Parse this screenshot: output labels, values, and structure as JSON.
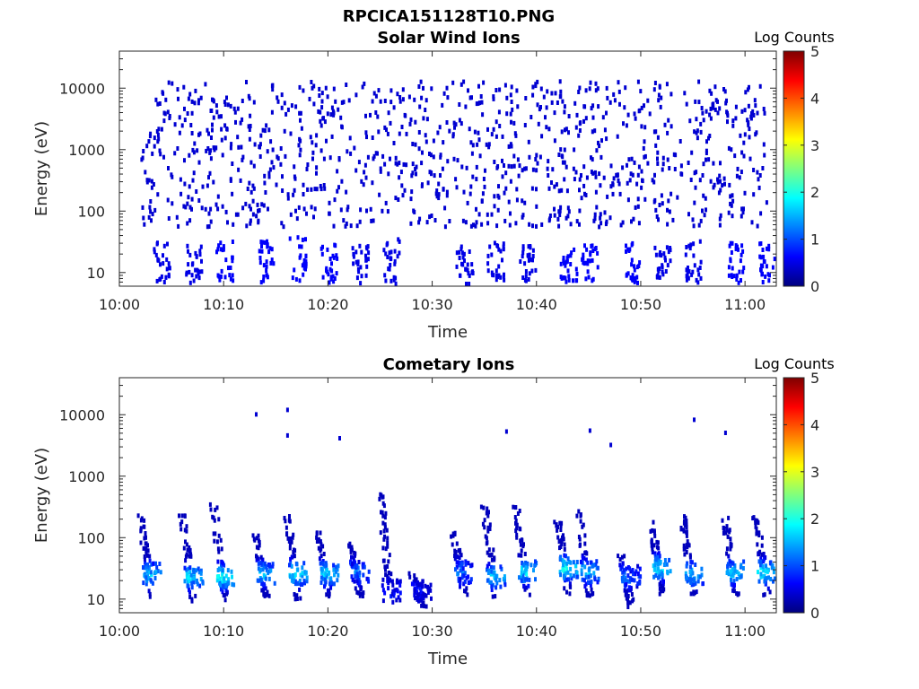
{
  "figure_title": "RPCICA151128T10.PNG",
  "colorbar_stops": [
    "#00007f",
    "#0000ff",
    "#007fff",
    "#00ffff",
    "#7fff7f",
    "#ffff00",
    "#ff7f00",
    "#ff0000",
    "#7f0000"
  ],
  "chart_data": [
    {
      "type": "heatmap",
      "title": "Solar Wind Ions",
      "xlabel": "Time",
      "ylabel": "Energy (eV)",
      "yscale": "log",
      "xlim": [
        "10:00",
        "11:03"
      ],
      "ylim": [
        6,
        40000
      ],
      "xticks": [
        "10:00",
        "10:10",
        "10:20",
        "10:30",
        "10:40",
        "10:50",
        "11:00"
      ],
      "yticks": [
        "10",
        "100",
        "1000",
        "10000"
      ],
      "colorbar": {
        "label": "Log Counts",
        "range": [
          0,
          5
        ],
        "ticks": [
          "0",
          "1",
          "2",
          "3",
          "4",
          "5"
        ]
      },
      "grid": false,
      "data_extent": [
        "10:02",
        "11:02"
      ],
      "background_level": 0.4,
      "low_energy_bursts": [
        {
          "t": "10:04",
          "e_min": 8,
          "e_max": 35,
          "level": 0.5
        },
        {
          "t": "10:07",
          "e_min": 10,
          "e_max": 30,
          "level": 0.5
        },
        {
          "t": "10:10",
          "e_min": 8,
          "e_max": 35,
          "level": 0.6
        },
        {
          "t": "10:14",
          "e_min": 10,
          "e_max": 35,
          "level": 0.6
        },
        {
          "t": "10:17",
          "e_min": 8,
          "e_max": 50,
          "level": 0.6
        },
        {
          "t": "10:20",
          "e_min": 8,
          "e_max": 35,
          "level": 0.6
        },
        {
          "t": "10:23",
          "e_min": 10,
          "e_max": 30,
          "level": 0.5
        },
        {
          "t": "10:26",
          "e_min": 8,
          "e_max": 40,
          "level": 0.5
        },
        {
          "t": "10:33",
          "e_min": 10,
          "e_max": 30,
          "level": 0.5
        },
        {
          "t": "10:36",
          "e_min": 8,
          "e_max": 35,
          "level": 0.5
        },
        {
          "t": "10:39",
          "e_min": 10,
          "e_max": 30,
          "level": 0.5
        },
        {
          "t": "10:43",
          "e_min": 8,
          "e_max": 35,
          "level": 0.6
        },
        {
          "t": "10:45",
          "e_min": 10,
          "e_max": 30,
          "level": 0.6
        },
        {
          "t": "10:49",
          "e_min": 8,
          "e_max": 35,
          "level": 0.6
        },
        {
          "t": "10:52",
          "e_min": 10,
          "e_max": 30,
          "level": 0.5
        },
        {
          "t": "10:55",
          "e_min": 8,
          "e_max": 35,
          "level": 0.5
        },
        {
          "t": "10:59",
          "e_min": 8,
          "e_max": 35,
          "level": 0.6
        },
        {
          "t": "11:02",
          "e_min": 8,
          "e_max": 35,
          "level": 0.6
        }
      ]
    },
    {
      "type": "heatmap",
      "title": "Cometary Ions",
      "xlabel": "Time",
      "ylabel": "Energy (eV)",
      "yscale": "log",
      "xlim": [
        "10:00",
        "11:03"
      ],
      "ylim": [
        6,
        40000
      ],
      "xticks": [
        "10:00",
        "10:10",
        "10:20",
        "10:30",
        "10:40",
        "10:50",
        "11:00"
      ],
      "yticks": [
        "10",
        "100",
        "1000",
        "10000"
      ],
      "colorbar": {
        "label": "Log Counts",
        "range": [
          0,
          5
        ],
        "ticks": [
          "0",
          "1",
          "2",
          "3",
          "4",
          "5"
        ]
      },
      "grid": false,
      "bursts": [
        {
          "t": "10:03",
          "e_min": 10,
          "e_max": 250,
          "peak_e": 28,
          "peak_level": 1.6
        },
        {
          "t": "10:07",
          "e_min": 10,
          "e_max": 250,
          "peak_e": 25,
          "peak_level": 1.7
        },
        {
          "t": "10:10",
          "e_min": 10,
          "e_max": 400,
          "peak_e": 25,
          "peak_level": 2.0
        },
        {
          "t": "10:14",
          "e_min": 12,
          "e_max": 120,
          "peak_e": 28,
          "peak_level": 1.6
        },
        {
          "t": "10:17",
          "e_min": 10,
          "e_max": 300,
          "peak_e": 28,
          "peak_level": 1.8
        },
        {
          "t": "10:20",
          "e_min": 12,
          "e_max": 150,
          "peak_e": 28,
          "peak_level": 1.7
        },
        {
          "t": "10:23",
          "e_min": 12,
          "e_max": 100,
          "peak_e": 30,
          "peak_level": 1.2
        },
        {
          "t": "10:26",
          "e_min": 8,
          "e_max": 600,
          "peak_e": 15,
          "peak_level": 0.8
        },
        {
          "t": "10:29",
          "e_min": 8,
          "e_max": 30,
          "peak_e": 15,
          "peak_level": 0.6
        },
        {
          "t": "10:33",
          "e_min": 12,
          "e_max": 150,
          "peak_e": 30,
          "peak_level": 1.2
        },
        {
          "t": "10:36",
          "e_min": 10,
          "e_max": 350,
          "peak_e": 25,
          "peak_level": 1.6
        },
        {
          "t": "10:39",
          "e_min": 12,
          "e_max": 400,
          "peak_e": 30,
          "peak_level": 1.8
        },
        {
          "t": "10:43",
          "e_min": 12,
          "e_max": 200,
          "peak_e": 35,
          "peak_level": 1.9
        },
        {
          "t": "10:45",
          "e_min": 12,
          "e_max": 300,
          "peak_e": 30,
          "peak_level": 1.6
        },
        {
          "t": "10:49",
          "e_min": 8,
          "e_max": 60,
          "peak_e": 25,
          "peak_level": 1.1
        },
        {
          "t": "10:52",
          "e_min": 12,
          "e_max": 200,
          "peak_e": 35,
          "peak_level": 1.8
        },
        {
          "t": "10:55",
          "e_min": 12,
          "e_max": 250,
          "peak_e": 28,
          "peak_level": 1.6
        },
        {
          "t": "10:59",
          "e_min": 12,
          "e_max": 250,
          "peak_e": 30,
          "peak_level": 1.7
        },
        {
          "t": "11:02",
          "e_min": 12,
          "e_max": 250,
          "peak_e": 30,
          "peak_level": 1.8
        }
      ],
      "isolated_points": [
        {
          "t": "10:13",
          "e": 11000,
          "level": 0.4
        },
        {
          "t": "10:16",
          "e": 13000,
          "level": 0.4
        },
        {
          "t": "10:16",
          "e": 5000,
          "level": 0.4
        },
        {
          "t": "10:21",
          "e": 4500,
          "level": 0.4
        },
        {
          "t": "10:37",
          "e": 5800,
          "level": 0.4
        },
        {
          "t": "10:45",
          "e": 6000,
          "level": 0.4
        },
        {
          "t": "10:47",
          "e": 3500,
          "level": 0.4
        },
        {
          "t": "10:55",
          "e": 9000,
          "level": 0.4
        },
        {
          "t": "10:58",
          "e": 5500,
          "level": 0.4
        }
      ]
    }
  ]
}
